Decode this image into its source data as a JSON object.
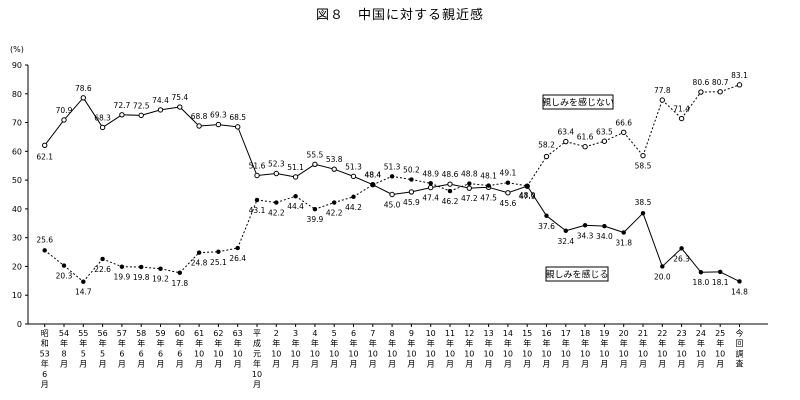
{
  "chart_data": {
    "type": "line",
    "title": "図８　中国に対する親近感",
    "ylabel": "(%)",
    "ylim": [
      0,
      90
    ],
    "yticks": [
      0,
      10,
      20,
      30,
      40,
      50,
      60,
      70,
      80,
      90
    ],
    "grid": false,
    "categories": [
      "昭和53年6月",
      "54年8月",
      "55年5月",
      "56年5月",
      "57年6月",
      "58年6月",
      "59年6月",
      "60年6月",
      "61年10月",
      "62年10月",
      "63年10月",
      "平成元年10月",
      "2年10月",
      "3年10月",
      "4年10月",
      "5年10月",
      "6年10月",
      "7年10月",
      "8年10月",
      "9年10月",
      "10年10月",
      "11年10月",
      "12年10月",
      "13年10月",
      "14年10月",
      "15年10月",
      "16年10月",
      "17年10月",
      "18年10月",
      "19年10月",
      "20年10月",
      "21年10月",
      "22年10月",
      "23年10月",
      "24年10月",
      "25年10月",
      "今回調査"
    ],
    "category_lines": [
      [
        "昭",
        "和",
        "53",
        "年",
        "6",
        "月"
      ],
      [
        "54",
        "年",
        "8",
        "月"
      ],
      [
        "55",
        "年",
        "5",
        "月"
      ],
      [
        "56",
        "年",
        "5",
        "月"
      ],
      [
        "57",
        "年",
        "6",
        "月"
      ],
      [
        "58",
        "年",
        "6",
        "月"
      ],
      [
        "59",
        "年",
        "6",
        "月"
      ],
      [
        "60",
        "年",
        "6",
        "月"
      ],
      [
        "61",
        "年",
        "10",
        "月"
      ],
      [
        "62",
        "年",
        "10",
        "月"
      ],
      [
        "63",
        "年",
        "10",
        "月"
      ],
      [
        "平",
        "成",
        "元",
        "年",
        "10",
        "月"
      ],
      [
        "2",
        "年",
        "10",
        "月"
      ],
      [
        "3",
        "年",
        "10",
        "月"
      ],
      [
        "4",
        "年",
        "10",
        "月"
      ],
      [
        "5",
        "年",
        "10",
        "月"
      ],
      [
        "6",
        "年",
        "10",
        "月"
      ],
      [
        "7",
        "年",
        "10",
        "月"
      ],
      [
        "8",
        "年",
        "10",
        "月"
      ],
      [
        "9",
        "年",
        "10",
        "月"
      ],
      [
        "10",
        "年",
        "10",
        "月"
      ],
      [
        "11",
        "年",
        "10",
        "月"
      ],
      [
        "12",
        "年",
        "10",
        "月"
      ],
      [
        "13",
        "年",
        "10",
        "月"
      ],
      [
        "14",
        "年",
        "10",
        "月"
      ],
      [
        "15",
        "年",
        "10",
        "月"
      ],
      [
        "16",
        "年",
        "10",
        "月"
      ],
      [
        "17",
        "年",
        "10",
        "月"
      ],
      [
        "18",
        "年",
        "10",
        "月"
      ],
      [
        "19",
        "年",
        "10",
        "月"
      ],
      [
        "20",
        "年",
        "10",
        "月"
      ],
      [
        "21",
        "年",
        "10",
        "月"
      ],
      [
        "22",
        "年",
        "10",
        "月"
      ],
      [
        "23",
        "年",
        "10",
        "月"
      ],
      [
        "24",
        "年",
        "10",
        "月"
      ],
      [
        "25",
        "年",
        "10",
        "月"
      ],
      [
        "今",
        "回",
        "調",
        "査"
      ]
    ],
    "series": [
      {
        "name": "親しみを感じない",
        "line_style": "solid-then-dotted",
        "marker": "open-circle",
        "values": [
          62.1,
          70.9,
          78.6,
          68.3,
          72.7,
          72.5,
          74.4,
          75.4,
          68.8,
          69.3,
          68.5,
          51.6,
          52.3,
          51.1,
          55.5,
          53.8,
          51.3,
          48.4,
          45.0,
          45.9,
          47.4,
          48.6,
          47.2,
          47.5,
          45.6,
          47.9,
          58.2,
          63.4,
          61.6,
          63.5,
          66.6,
          58.5,
          77.8,
          71.4,
          80.6,
          80.7,
          83.1
        ]
      },
      {
        "name": "親しみを感じる",
        "line_style": "dotted-then-solid",
        "marker": "filled-dot",
        "values": [
          25.6,
          20.3,
          14.7,
          22.6,
          19.9,
          19.8,
          19.2,
          17.8,
          24.8,
          25.1,
          26.4,
          43.1,
          42.2,
          44.4,
          39.9,
          42.2,
          44.2,
          48.4,
          51.3,
          50.2,
          48.9,
          46.2,
          48.8,
          48.1,
          49.1,
          48.0,
          37.6,
          32.4,
          34.3,
          34.0,
          31.8,
          38.5,
          20.0,
          26.3,
          18.0,
          18.1,
          14.8
        ]
      }
    ],
    "legend_placement": "inline labels near series"
  }
}
